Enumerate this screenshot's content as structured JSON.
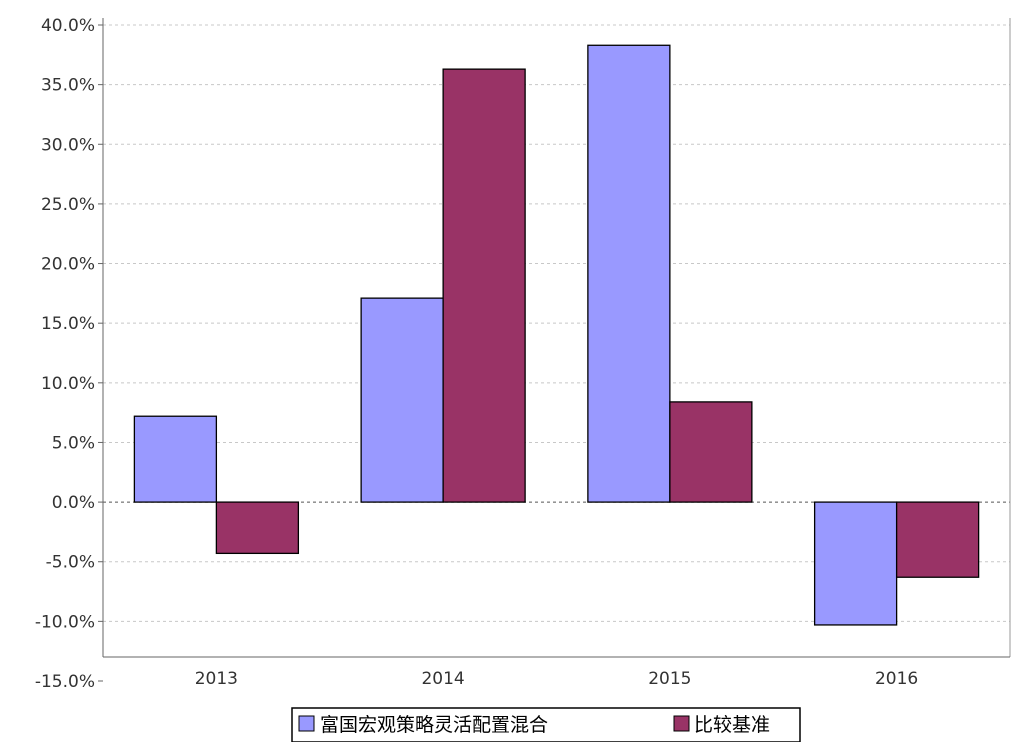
{
  "chart_data": {
    "type": "bar",
    "categories": [
      "2013",
      "2014",
      "2015",
      "2016"
    ],
    "series": [
      {
        "name": "富国宏观策略灵活配置混合",
        "color": "#9999FF",
        "values": [
          7.2,
          17.1,
          38.3,
          -10.3
        ]
      },
      {
        "name": "比较基准",
        "color": "#993366",
        "values": [
          -4.3,
          36.3,
          8.4,
          -6.3
        ]
      }
    ],
    "yticks": [
      "40.0%",
      "35.0%",
      "30.0%",
      "25.0%",
      "20.0%",
      "15.0%",
      "10.0%",
      "5.0%",
      "0.0%",
      "-5.0%",
      "-10.0%",
      "-15.0%"
    ],
    "ylim": [
      -15,
      40
    ],
    "grid": true,
    "legend_position": "bottom"
  }
}
